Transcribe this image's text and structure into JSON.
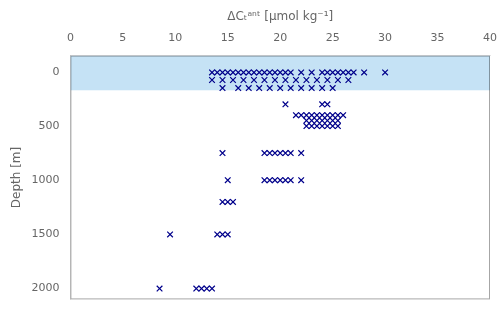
{
  "chart_data": {
    "type": "scatter",
    "xlabel": "ΔCₜᵃⁿᵗ [μmol kg⁻¹]",
    "ylabel": "Depth [m]",
    "xlim": [
      0,
      40
    ],
    "ylim": [
      2100,
      -150
    ],
    "xticks": [
      0,
      5,
      10,
      15,
      20,
      25,
      30,
      35,
      40
    ],
    "yticks": [
      0,
      500,
      1000,
      1500,
      2000
    ],
    "grid": false,
    "span": {
      "from": -150,
      "to": 170,
      "color": "#c5e2f5"
    },
    "color": "#00008B",
    "marker": "x",
    "x": [
      13.5,
      14.0,
      14.5,
      15.0,
      15.5,
      16.0,
      16.5,
      17.0,
      17.5,
      18.0,
      18.5,
      19.0,
      19.5,
      20.0,
      20.5,
      21.0,
      22.0,
      23.0,
      24.0,
      24.5,
      25.0,
      25.5,
      26.0,
      26.5,
      27.0,
      28.0,
      30.0,
      13.5,
      14.5,
      15.5,
      16.5,
      17.5,
      18.5,
      19.5,
      20.5,
      21.5,
      22.5,
      23.5,
      24.5,
      25.5,
      26.5,
      14.5,
      16.0,
      17.0,
      18.0,
      19.0,
      20.0,
      21.0,
      22.0,
      23.0,
      24.0,
      25.0,
      20.5,
      24.0,
      24.5,
      21.5,
      22.0,
      22.5,
      23.0,
      23.5,
      24.0,
      24.5,
      25.0,
      25.5,
      26.0,
      22.5,
      23.0,
      23.5,
      24.0,
      24.5,
      25.0,
      25.5,
      22.5,
      23.0,
      23.5,
      24.0,
      24.5,
      25.0,
      25.5,
      14.5,
      18.5,
      19.0,
      19.5,
      20.0,
      20.5,
      21.0,
      22.0,
      15.0,
      18.5,
      19.0,
      19.5,
      20.0,
      20.5,
      21.0,
      22.0,
      14.5,
      15.0,
      15.5,
      9.5,
      14.0,
      14.5,
      15.0,
      8.5,
      12.0,
      12.5,
      13.0,
      13.5
    ],
    "values": [
      5,
      5,
      5,
      5,
      5,
      5,
      5,
      5,
      5,
      5,
      5,
      5,
      5,
      5,
      5,
      5,
      5,
      5,
      5,
      5,
      5,
      5,
      5,
      5,
      5,
      5,
      5,
      75,
      75,
      75,
      75,
      75,
      75,
      75,
      75,
      75,
      75,
      75,
      75,
      75,
      75,
      150,
      150,
      150,
      150,
      150,
      150,
      150,
      150,
      150,
      150,
      150,
      300,
      300,
      300,
      400,
      400,
      400,
      400,
      400,
      400,
      400,
      400,
      400,
      400,
      450,
      450,
      450,
      450,
      450,
      450,
      450,
      500,
      500,
      500,
      500,
      500,
      500,
      500,
      750,
      750,
      750,
      750,
      750,
      750,
      750,
      750,
      1000,
      1000,
      1000,
      1000,
      1000,
      1000,
      1000,
      1000,
      1200,
      1200,
      1200,
      1500,
      1500,
      1500,
      1500,
      2000,
      2000,
      2000,
      2000,
      2000
    ]
  }
}
